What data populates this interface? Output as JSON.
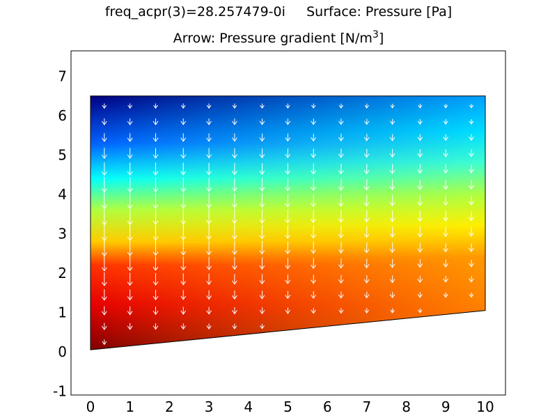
{
  "chart_data": {
    "type": "surface+arrow",
    "title_line1": "freq_acpr(3)=28.257479-0i     Surface: Pressure [Pa]",
    "title_line2_prefix": "Arrow: Pressure gradient [N/m",
    "title_line2_sup": "3",
    "title_line2_suffix": "]",
    "xlim": [
      0,
      10
    ],
    "ylim": [
      -1,
      7.6
    ],
    "x_ticks": [
      "0",
      "1",
      "2",
      "3",
      "4",
      "5",
      "6",
      "7",
      "8",
      "9",
      "10"
    ],
    "y_ticks": [
      "-1",
      "0",
      "1",
      "2",
      "3",
      "4",
      "5",
      "6",
      "7"
    ],
    "domain_polygon": [
      [
        0,
        0.05
      ],
      [
        10,
        1.05
      ],
      [
        10,
        6.5
      ],
      [
        0,
        6.5
      ]
    ],
    "colormap": "jet",
    "colors": {
      "stops": [
        "#800000",
        "#ff0000",
        "#ff8000",
        "#ffff00",
        "#00ffff",
        "#0000ff",
        "#00008b"
      ],
      "arrow": "#ffffff",
      "frame": "#000000"
    },
    "surface_left_edge_color_by_y": [
      {
        "y": 0.05,
        "color": "#800000"
      },
      {
        "y": 1.2,
        "color": "#e60000"
      },
      {
        "y": 2.2,
        "color": "#ff3300"
      },
      {
        "y": 2.8,
        "color": "#ffcc00"
      },
      {
        "y": 3.6,
        "color": "#b0ff40"
      },
      {
        "y": 4.4,
        "color": "#00ffff"
      },
      {
        "y": 5.3,
        "color": "#0060ff"
      },
      {
        "y": 6.5,
        "color": "#000080"
      }
    ],
    "surface_right_edge_color_by_y": [
      {
        "y": 1.05,
        "color": "#ff8000"
      },
      {
        "y": 2.4,
        "color": "#ff9a00"
      },
      {
        "y": 3.2,
        "color": "#ffee00"
      },
      {
        "y": 4.0,
        "color": "#b0ff40"
      },
      {
        "y": 4.8,
        "color": "#40ffd0"
      },
      {
        "y": 5.6,
        "color": "#00e0ff"
      },
      {
        "y": 6.5,
        "color": "#00a0ff"
      }
    ],
    "arrows": {
      "x_positions": [
        0.35,
        1.0,
        1.65,
        2.35,
        3.0,
        3.65,
        4.35,
        5.0,
        5.65,
        6.35,
        7.0,
        7.65,
        8.35,
        9.0,
        9.65
      ],
      "rows": 16,
      "direction": "downward (toward increasing pressure)",
      "max_length_at": {
        "x": 0.35,
        "y": 3.2
      }
    }
  }
}
